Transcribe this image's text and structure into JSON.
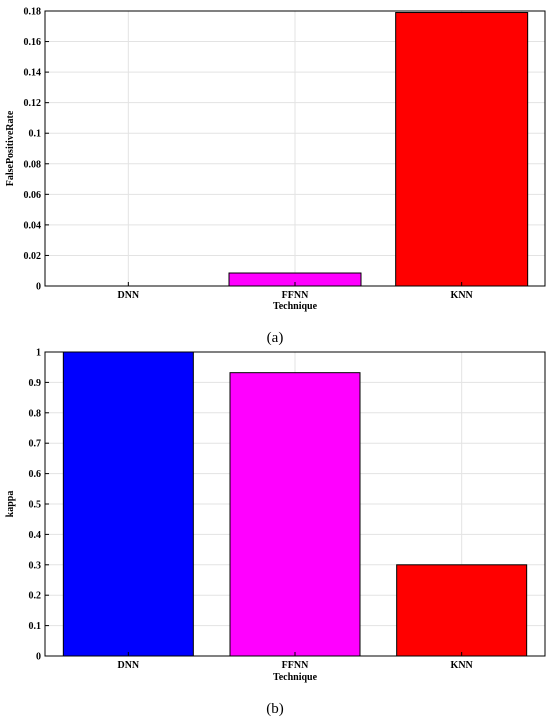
{
  "chart_data": [
    {
      "type": "bar",
      "caption": "(a)",
      "categories": [
        "DNN",
        "FFNN",
        "KNN"
      ],
      "values": [
        0,
        0.0085,
        0.179
      ],
      "colors": [
        "#0000ff",
        "#ff00ff",
        "#ff0000"
      ],
      "xlabel": "Technique",
      "ylabel": "FalsePositiveRate",
      "ylim": [
        0,
        0.18
      ],
      "yticks": [
        "0",
        "0.02",
        "0.04",
        "0.06",
        "0.08",
        "0.1",
        "0.12",
        "0.14",
        "0.16",
        "0.18"
      ],
      "ytick_values": [
        0,
        0.02,
        0.04,
        0.06,
        0.08,
        0.1,
        0.12,
        0.14,
        0.16,
        0.18
      ],
      "grid": true
    },
    {
      "type": "bar",
      "caption": "(b)",
      "categories": [
        "DNN",
        "FFNN",
        "KNN"
      ],
      "values": [
        1.0,
        0.932,
        0.3
      ],
      "colors": [
        "#0000ff",
        "#ff00ff",
        "#ff0000"
      ],
      "xlabel": "Technique",
      "ylabel": "kappa",
      "ylim": [
        0,
        1
      ],
      "yticks": [
        "0",
        "0.1",
        "0.2",
        "0.3",
        "0.4",
        "0.5",
        "0.6",
        "0.7",
        "0.8",
        "0.9",
        "1"
      ],
      "ytick_values": [
        0,
        0.1,
        0.2,
        0.3,
        0.4,
        0.5,
        0.6,
        0.7,
        0.8,
        0.9,
        1
      ],
      "grid": true
    }
  ]
}
